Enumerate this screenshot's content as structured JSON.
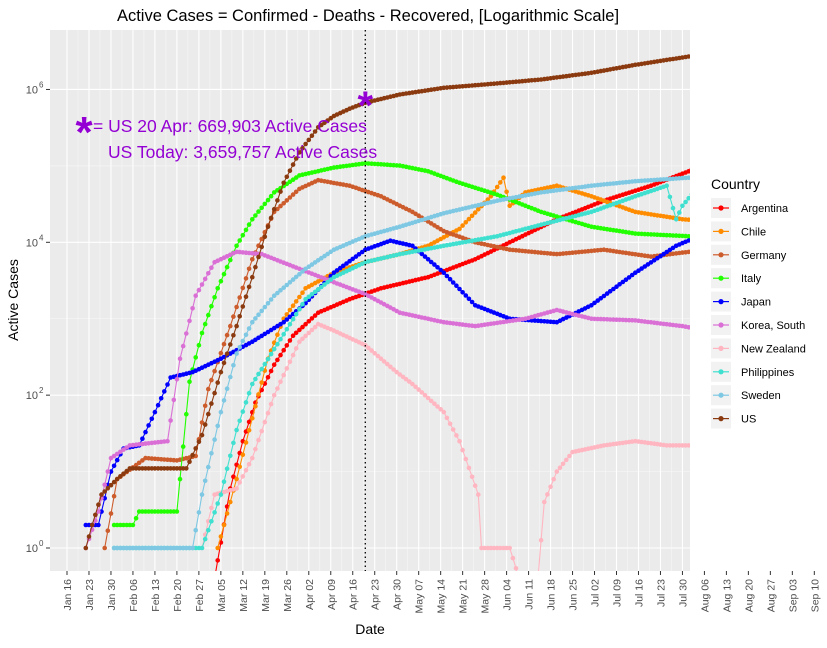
{
  "chart_data": {
    "type": "line",
    "title": "Active Cases = Confirmed - Deaths - Recovered, [Logarithmic Scale]",
    "xlabel": "Date",
    "ylabel": "Active Cases",
    "y_scale": "log10",
    "ylim": [
      0.5,
      6000000
    ],
    "y_ticks": [
      {
        "value": 1,
        "base": "10",
        "exp": "0"
      },
      {
        "value": 100,
        "base": "10",
        "exp": "2"
      },
      {
        "value": 10000,
        "base": "10",
        "exp": "4"
      },
      {
        "value": 1000000,
        "base": "10",
        "exp": "6"
      }
    ],
    "x_start": "2020-01-16",
    "x_ticks": [
      "Jan 16",
      "Jan 23",
      "Jan 30",
      "Feb 06",
      "Feb 13",
      "Feb 20",
      "Feb 27",
      "Mar 05",
      "Mar 12",
      "Mar 19",
      "Mar 26",
      "Apr 02",
      "Apr 09",
      "Apr 16",
      "Apr 23",
      "Apr 30",
      "May 07",
      "May 14",
      "May 21",
      "May 28",
      "Jun 04",
      "Jun 11",
      "Jun 18",
      "Jun 25",
      "Jul 02",
      "Jul 09",
      "Jul 16",
      "Jul 23",
      "Jul 30",
      "Aug 06",
      "Aug 13",
      "Aug 20",
      "Aug 27",
      "Sep 03",
      "Sep 10"
    ],
    "reference_line": {
      "x": "Apr 20"
    },
    "grid": true,
    "legend_title": "Country",
    "legend_position": "right",
    "annotations": {
      "marker": "*",
      "line1": "= US 20 Apr: 669,903 Active Cases",
      "line2": "US Today: 3,659,757 Active Cases",
      "color": "#9400D3"
    },
    "series": [
      {
        "name": "Argentina",
        "color": "#FF0000",
        "points": [
          [
            "2020-03-03",
            0.4
          ],
          [
            "2020-03-08",
            6
          ],
          [
            "2020-03-12",
            25
          ],
          [
            "2020-03-16",
            80
          ],
          [
            "2020-03-22",
            250
          ],
          [
            "2020-03-28",
            600
          ],
          [
            "2020-04-05",
            1200
          ],
          [
            "2020-04-15",
            1800
          ],
          [
            "2020-04-25",
            2500
          ],
          [
            "2020-05-10",
            3500
          ],
          [
            "2020-05-25",
            6000
          ],
          [
            "2020-06-05",
            10000
          ],
          [
            "2020-06-20",
            20000
          ],
          [
            "2020-07-05",
            35000
          ],
          [
            "2020-07-20",
            55000
          ],
          [
            "2020-08-01",
            85000
          ],
          [
            "2020-08-08",
            140000
          ],
          [
            "2020-08-10",
            60000
          ],
          [
            "2020-08-20",
            75000
          ],
          [
            "2020-08-29",
            100000
          ]
        ]
      },
      {
        "name": "Chile",
        "color": "#FF8C00",
        "points": [
          [
            "2020-03-04",
            1
          ],
          [
            "2020-03-10",
            8
          ],
          [
            "2020-03-15",
            50
          ],
          [
            "2020-03-20",
            300
          ],
          [
            "2020-03-25",
            1000
          ],
          [
            "2020-04-01",
            2500
          ],
          [
            "2020-04-10",
            4000
          ],
          [
            "2020-04-20",
            5500
          ],
          [
            "2020-05-01",
            7000
          ],
          [
            "2020-05-10",
            9000
          ],
          [
            "2020-05-20",
            15000
          ],
          [
            "2020-05-30",
            40000
          ],
          [
            "2020-06-03",
            70000
          ],
          [
            "2020-06-05",
            30000
          ],
          [
            "2020-06-10",
            45000
          ],
          [
            "2020-06-20",
            55000
          ],
          [
            "2020-07-01",
            40000
          ],
          [
            "2020-07-15",
            25000
          ],
          [
            "2020-07-30",
            20000
          ],
          [
            "2020-08-15",
            18000
          ],
          [
            "2020-08-29",
            17000
          ]
        ]
      },
      {
        "name": "Germany",
        "color": "#CD5C2C",
        "points": [
          [
            "2020-01-28",
            1
          ],
          [
            "2020-02-01",
            8
          ],
          [
            "2020-02-10",
            15
          ],
          [
            "2020-02-20",
            14
          ],
          [
            "2020-02-26",
            16
          ],
          [
            "2020-03-01",
            120
          ],
          [
            "2020-03-08",
            800
          ],
          [
            "2020-03-15",
            6000
          ],
          [
            "2020-03-22",
            25000
          ],
          [
            "2020-03-30",
            50000
          ],
          [
            "2020-04-05",
            65000
          ],
          [
            "2020-04-15",
            55000
          ],
          [
            "2020-04-25",
            40000
          ],
          [
            "2020-05-05",
            25000
          ],
          [
            "2020-05-15",
            14000
          ],
          [
            "2020-05-25",
            10000
          ],
          [
            "2020-06-05",
            8000
          ],
          [
            "2020-06-20",
            7000
          ],
          [
            "2020-07-05",
            8000
          ],
          [
            "2020-07-20",
            6500
          ],
          [
            "2020-08-01",
            7500
          ],
          [
            "2020-08-15",
            13000
          ],
          [
            "2020-08-29",
            20000
          ]
        ]
      },
      {
        "name": "Italy",
        "color": "#22FF00",
        "points": [
          [
            "2020-01-31",
            2
          ],
          [
            "2020-02-06",
            2
          ],
          [
            "2020-02-08",
            3
          ],
          [
            "2020-02-20",
            3
          ],
          [
            "2020-02-24",
            150
          ],
          [
            "2020-02-28",
            650
          ],
          [
            "2020-03-04",
            2500
          ],
          [
            "2020-03-10",
            9000
          ],
          [
            "2020-03-15",
            20000
          ],
          [
            "2020-03-22",
            45000
          ],
          [
            "2020-03-30",
            75000
          ],
          [
            "2020-04-10",
            95000
          ],
          [
            "2020-04-20",
            108000
          ],
          [
            "2020-05-01",
            101000
          ],
          [
            "2020-05-10",
            85000
          ],
          [
            "2020-05-20",
            60000
          ],
          [
            "2020-06-01",
            42000
          ],
          [
            "2020-06-15",
            25000
          ],
          [
            "2020-07-01",
            16000
          ],
          [
            "2020-07-15",
            13000
          ],
          [
            "2020-08-01",
            12000
          ],
          [
            "2020-08-15",
            16000
          ],
          [
            "2020-08-29",
            25000
          ]
        ]
      },
      {
        "name": "Japan",
        "color": "#0000FF",
        "points": [
          [
            "2020-01-22",
            2
          ],
          [
            "2020-01-26",
            2
          ],
          [
            "2020-01-30",
            10
          ],
          [
            "2020-02-03",
            20
          ],
          [
            "2020-02-08",
            22
          ],
          [
            "2020-02-13",
            60
          ],
          [
            "2020-02-18",
            170
          ],
          [
            "2020-02-25",
            200
          ],
          [
            "2020-03-05",
            300
          ],
          [
            "2020-03-15",
            500
          ],
          [
            "2020-03-25",
            900
          ],
          [
            "2020-04-01",
            1600
          ],
          [
            "2020-04-10",
            4000
          ],
          [
            "2020-04-20",
            8000
          ],
          [
            "2020-04-28",
            10500
          ],
          [
            "2020-05-05",
            9000
          ],
          [
            "2020-05-15",
            4000
          ],
          [
            "2020-05-25",
            1500
          ],
          [
            "2020-06-05",
            1000
          ],
          [
            "2020-06-20",
            900
          ],
          [
            "2020-07-01",
            1500
          ],
          [
            "2020-07-15",
            4000
          ],
          [
            "2020-07-28",
            9000
          ],
          [
            "2020-08-08",
            14000
          ],
          [
            "2020-08-15",
            16000
          ],
          [
            "2020-08-29",
            10000
          ]
        ]
      },
      {
        "name": "Korea, South",
        "color": "#DA70D6",
        "points": [
          [
            "2020-01-22",
            1
          ],
          [
            "2020-01-26",
            3
          ],
          [
            "2020-01-30",
            15
          ],
          [
            "2020-02-05",
            22
          ],
          [
            "2020-02-17",
            25
          ],
          [
            "2020-02-21",
            300
          ],
          [
            "2020-02-26",
            2000
          ],
          [
            "2020-03-03",
            5500
          ],
          [
            "2020-03-10",
            7500
          ],
          [
            "2020-03-18",
            7000
          ],
          [
            "2020-03-30",
            4500
          ],
          [
            "2020-04-10",
            3000
          ],
          [
            "2020-04-20",
            2100
          ],
          [
            "2020-05-01",
            1200
          ],
          [
            "2020-05-15",
            900
          ],
          [
            "2020-05-25",
            800
          ],
          [
            "2020-06-10",
            1000
          ],
          [
            "2020-06-20",
            1300
          ],
          [
            "2020-07-01",
            1000
          ],
          [
            "2020-07-15",
            950
          ],
          [
            "2020-07-30",
            800
          ],
          [
            "2020-08-08",
            680
          ],
          [
            "2020-08-15",
            1000
          ],
          [
            "2020-08-22",
            2000
          ],
          [
            "2020-08-29",
            4500
          ]
        ]
      },
      {
        "name": "New Zealand",
        "color": "#FFB6C1",
        "points": [
          [
            "2020-02-28",
            1
          ],
          [
            "2020-03-03",
            5
          ],
          [
            "2020-03-10",
            6
          ],
          [
            "2020-03-15",
            15
          ],
          [
            "2020-03-22",
            100
          ],
          [
            "2020-03-30",
            500
          ],
          [
            "2020-04-05",
            850
          ],
          [
            "2020-04-10",
            700
          ],
          [
            "2020-04-20",
            450
          ],
          [
            "2020-04-30",
            200
          ],
          [
            "2020-05-05",
            140
          ],
          [
            "2020-05-15",
            60
          ],
          [
            "2020-05-20",
            25
          ],
          [
            "2020-05-26",
            5
          ],
          [
            "2020-05-27",
            1
          ],
          [
            "2020-06-05",
            1
          ],
          [
            "2020-06-08",
            0.4
          ],
          [
            "2020-06-14",
            0.4
          ],
          [
            "2020-06-16",
            4
          ],
          [
            "2020-06-20",
            10
          ],
          [
            "2020-06-25",
            18
          ],
          [
            "2020-07-05",
            22
          ],
          [
            "2020-07-15",
            25
          ],
          [
            "2020-07-25",
            22
          ],
          [
            "2020-08-09",
            22
          ],
          [
            "2020-08-12",
            35
          ],
          [
            "2020-08-18",
            90
          ],
          [
            "2020-08-25",
            130
          ],
          [
            "2020-08-29",
            130
          ]
        ]
      },
      {
        "name": "Philippines",
        "color": "#40E0D0",
        "points": [
          [
            "2020-01-31",
            1
          ],
          [
            "2020-02-20",
            1
          ],
          [
            "2020-02-28",
            1
          ],
          [
            "2020-03-05",
            5
          ],
          [
            "2020-03-10",
            35
          ],
          [
            "2020-03-15",
            140
          ],
          [
            "2020-03-22",
            400
          ],
          [
            "2020-04-01",
            1800
          ],
          [
            "2020-04-10",
            3500
          ],
          [
            "2020-04-20",
            5500
          ],
          [
            "2020-05-01",
            7000
          ],
          [
            "2020-05-15",
            9000
          ],
          [
            "2020-06-01",
            12000
          ],
          [
            "2020-06-15",
            17000
          ],
          [
            "2020-07-01",
            25000
          ],
          [
            "2020-07-15",
            40000
          ],
          [
            "2020-07-25",
            55000
          ],
          [
            "2020-07-28",
            20000
          ],
          [
            "2020-07-30",
            30000
          ],
          [
            "2020-08-05",
            60000
          ],
          [
            "2020-08-12",
            80000
          ],
          [
            "2020-08-16",
            45000
          ],
          [
            "2020-08-22",
            60000
          ],
          [
            "2020-08-29",
            70000
          ]
        ]
      },
      {
        "name": "Sweden",
        "color": "#7EC8E3",
        "points": [
          [
            "2020-01-31",
            1
          ],
          [
            "2020-02-25",
            1
          ],
          [
            "2020-02-28",
            5
          ],
          [
            "2020-03-05",
            60
          ],
          [
            "2020-03-10",
            350
          ],
          [
            "2020-03-15",
            900
          ],
          [
            "2020-03-22",
            2000
          ],
          [
            "2020-04-01",
            4500
          ],
          [
            "2020-04-10",
            8000
          ],
          [
            "2020-04-20",
            12000
          ],
          [
            "2020-05-01",
            16000
          ],
          [
            "2020-05-15",
            24000
          ],
          [
            "2020-06-01",
            35000
          ],
          [
            "2020-06-15",
            45000
          ],
          [
            "2020-07-01",
            55000
          ],
          [
            "2020-07-15",
            63000
          ],
          [
            "2020-08-01",
            70000
          ],
          [
            "2020-08-15",
            76000
          ],
          [
            "2020-08-29",
            78000
          ]
        ]
      },
      {
        "name": "US",
        "color": "#8B3A10",
        "points": [
          [
            "2020-01-22",
            1
          ],
          [
            "2020-01-24",
            2
          ],
          [
            "2020-01-27",
            5
          ],
          [
            "2020-02-01",
            8
          ],
          [
            "2020-02-05",
            11
          ],
          [
            "2020-02-23",
            11
          ],
          [
            "2020-02-28",
            30
          ],
          [
            "2020-03-05",
            200
          ],
          [
            "2020-03-10",
            800
          ],
          [
            "2020-03-15",
            3500
          ],
          [
            "2020-03-20",
            16000
          ],
          [
            "2020-03-25",
            60000
          ],
          [
            "2020-03-30",
            150000
          ],
          [
            "2020-04-05",
            320000
          ],
          [
            "2020-04-10",
            450000
          ],
          [
            "2020-04-15",
            560000
          ],
          [
            "2020-04-20",
            669903
          ],
          [
            "2020-05-01",
            860000
          ],
          [
            "2020-05-15",
            1050000
          ],
          [
            "2020-06-01",
            1200000
          ],
          [
            "2020-06-15",
            1350000
          ],
          [
            "2020-07-01",
            1650000
          ],
          [
            "2020-07-15",
            2100000
          ],
          [
            "2020-08-01",
            2700000
          ],
          [
            "2020-08-15",
            3200000
          ],
          [
            "2020-08-29",
            3659757
          ]
        ]
      }
    ]
  }
}
